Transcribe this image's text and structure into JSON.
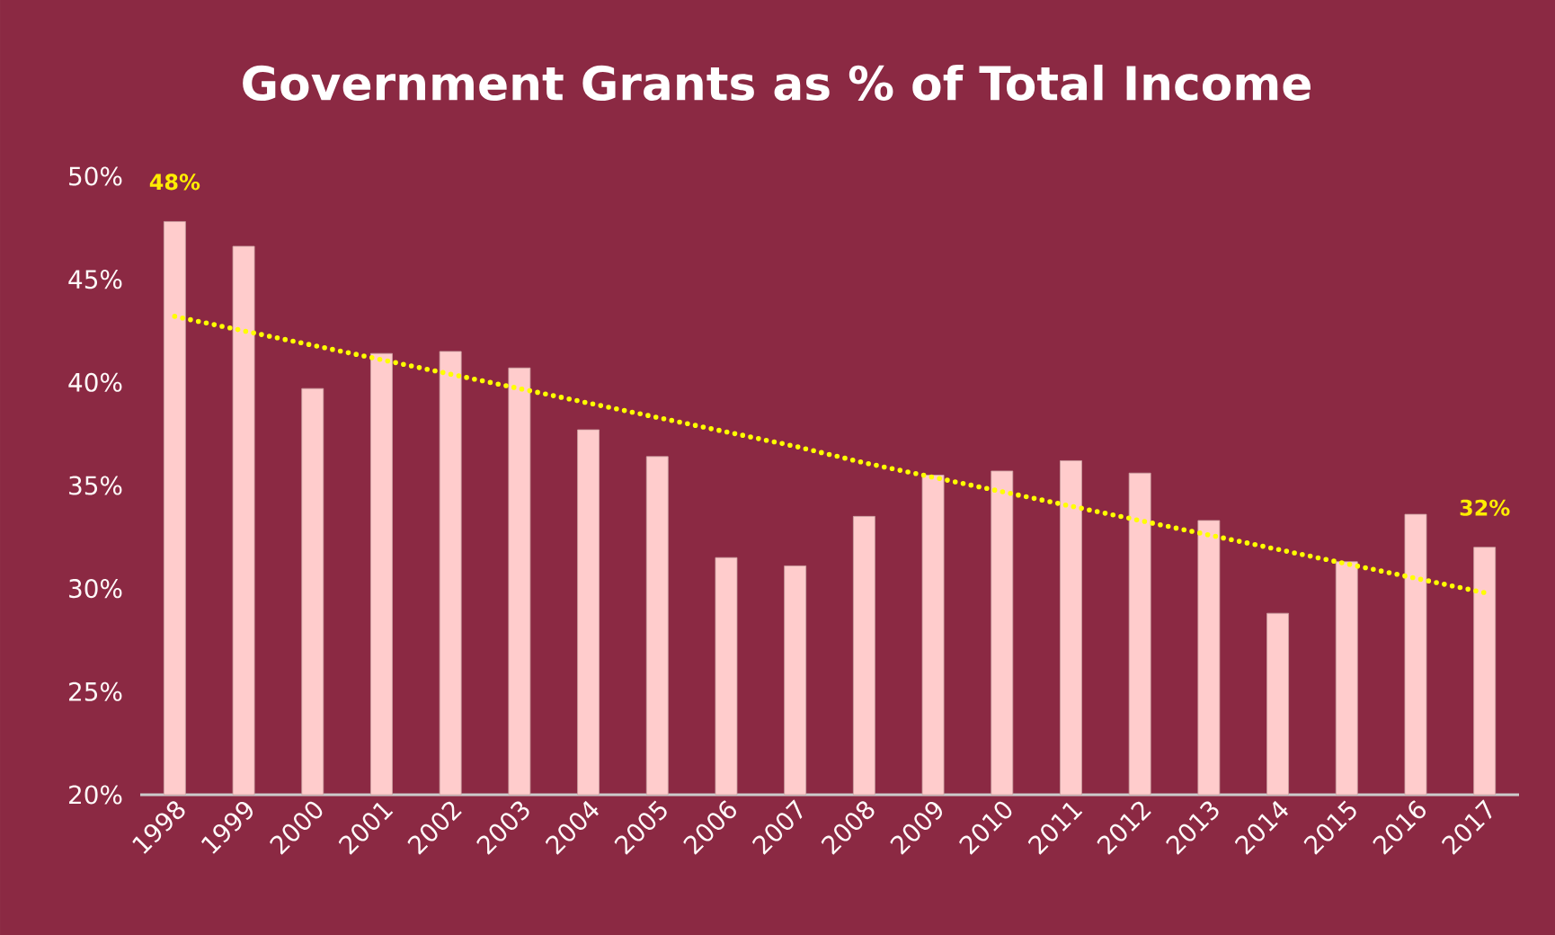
{
  "chart_data": {
    "type": "bar",
    "title": "Government Grants as % of Total Income",
    "categories": [
      "1998",
      "1999",
      "2000",
      "2001",
      "2002",
      "2003",
      "2004",
      "2005",
      "2006",
      "2007",
      "2008",
      "2009",
      "2010",
      "2011",
      "2012",
      "2013",
      "2014",
      "2015",
      "2016",
      "2017"
    ],
    "series": [
      {
        "color": "#ffcccc",
        "values": [
          47.8,
          46.6,
          39.7,
          41.4,
          41.5,
          40.7,
          37.7,
          36.4,
          31.5,
          31.1,
          33.5,
          35.5,
          35.7,
          36.2,
          35.6,
          33.3,
          28.8,
          31.3,
          33.6,
          32.0
        ],
        "value_labels": [
          "48%",
          null,
          null,
          null,
          null,
          null,
          null,
          null,
          null,
          null,
          null,
          null,
          null,
          null,
          null,
          null,
          null,
          null,
          null,
          "32%"
        ]
      },
      {
        "type": "line",
        "color": "#ffff00",
        "line_style": "dotted",
        "values": [
          43.2,
          42.5,
          41.8,
          41.1,
          40.4,
          39.7,
          39.0,
          38.3,
          37.6,
          36.9,
          36.1,
          35.4,
          34.7,
          34.0,
          33.3,
          32.6,
          31.9,
          31.2,
          30.5,
          29.8
        ]
      }
    ],
    "ylim": [
      20,
      50
    ],
    "yticks": [
      {
        "value": 20,
        "label": "20%"
      },
      {
        "value": 25,
        "label": "25%"
      },
      {
        "value": 30,
        "label": "30%"
      },
      {
        "value": 35,
        "label": "35%"
      },
      {
        "value": 40,
        "label": "40%"
      },
      {
        "value": 45,
        "label": "45%"
      },
      {
        "value": 50,
        "label": "50%"
      }
    ],
    "grid": false
  }
}
